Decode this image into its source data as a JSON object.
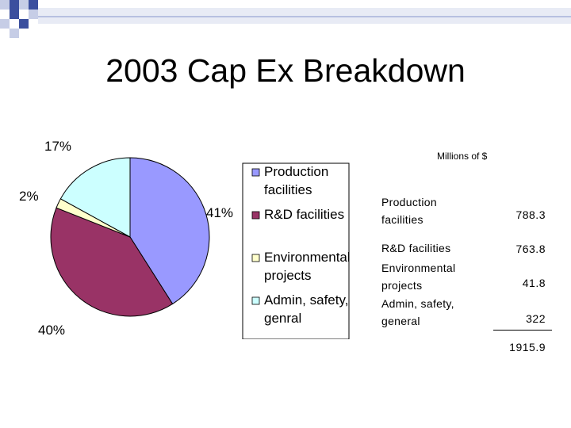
{
  "slide": {
    "title": "2003 Cap Ex Breakdown"
  },
  "colors": {
    "production": "#9999ff",
    "rd": "#993366",
    "environmental": "#ffffcc",
    "admin": "#ccffff",
    "deco_dark": "#3b4f9e",
    "deco_light": "#c6cde6"
  },
  "chart_data": {
    "type": "pie",
    "categories": [
      "Production facilities",
      "R&D facilities",
      "Environmental projects",
      "Admin, safety, genral"
    ],
    "values": [
      41,
      40,
      2,
      17
    ],
    "data_labels": [
      "41%",
      "40%",
      "2%",
      "17%"
    ],
    "legend": [
      "Production facilities",
      "R&D facilities",
      "Environmental projects",
      "Admin, safety, genral"
    ],
    "legend_lines": [
      [
        "Production",
        "facilities"
      ],
      [
        "R&D facilities"
      ],
      [
        "Environmental",
        "projects"
      ],
      [
        "Admin, safety,",
        "genral"
      ]
    ],
    "legend_position": "right"
  },
  "table": {
    "header": "Millions of $",
    "rows": [
      {
        "label_lines": [
          "Production",
          "facilities"
        ],
        "value": "788.3"
      },
      {
        "label_lines": [
          "R&D facilities"
        ],
        "value": "763.8"
      },
      {
        "label_lines": [
          "Environmental",
          "projects"
        ],
        "value": "41.8"
      },
      {
        "label_lines": [
          "Admin, safety,",
          "general"
        ],
        "value": "322"
      }
    ],
    "total": "1915.9"
  }
}
